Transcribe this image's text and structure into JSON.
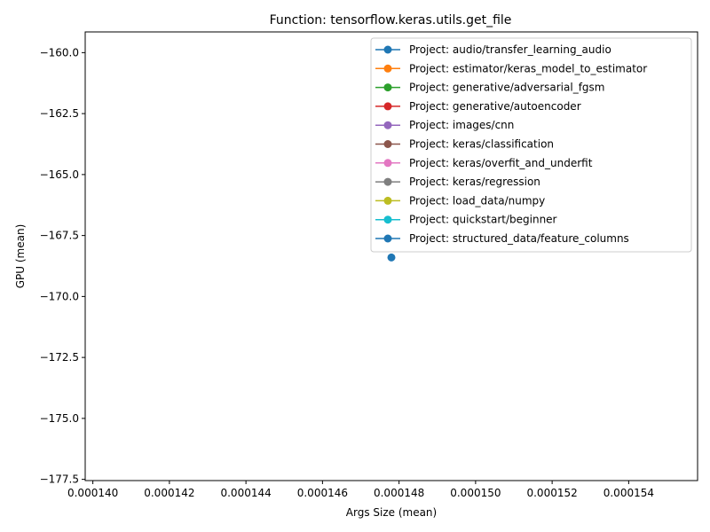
{
  "chart_data": {
    "type": "line",
    "title": "Function: tensorflow.keras.utils.get_file",
    "xlabel": "Args Size (mean)",
    "ylabel": "GPU (mean)",
    "xlim": [
      0.0001398,
      0.0001558
    ],
    "ylim": [
      -177.55,
      -159.15
    ],
    "x_ticks": [
      0.00014,
      0.000142,
      0.000144,
      0.000146,
      0.000148,
      0.00015,
      0.000152,
      0.000154
    ],
    "x_tick_labels": [
      "0.000140",
      "0.000142",
      "0.000144",
      "0.000146",
      "0.000148",
      "0.000150",
      "0.000152",
      "0.000154"
    ],
    "y_ticks": [
      -160.0,
      -162.5,
      -165.0,
      -167.5,
      -170.0,
      -172.5,
      -175.0,
      -177.5
    ],
    "y_tick_labels": [
      "−160.0",
      "−162.5",
      "−165.0",
      "−167.5",
      "−170.0",
      "−172.5",
      "−175.0",
      "−177.5"
    ],
    "legend_position": "top-right",
    "grid": false,
    "series": [
      {
        "name": "Project: audio/transfer_learning_audio",
        "color": "#1f77b4",
        "points": []
      },
      {
        "name": "Project: estimator/keras_model_to_estimator",
        "color": "#ff7f0e",
        "points": []
      },
      {
        "name": "Project: generative/adversarial_fgsm",
        "color": "#2ca02c",
        "points": []
      },
      {
        "name": "Project: generative/autoencoder",
        "color": "#d62728",
        "points": []
      },
      {
        "name": "Project: images/cnn",
        "color": "#9467bd",
        "points": []
      },
      {
        "name": "Project: keras/classification",
        "color": "#8c564b",
        "points": []
      },
      {
        "name": "Project: keras/overfit_and_underfit",
        "color": "#e377c2",
        "points": []
      },
      {
        "name": "Project: keras/regression",
        "color": "#7f7f7f",
        "points": []
      },
      {
        "name": "Project: load_data/numpy",
        "color": "#bcbd22",
        "points": []
      },
      {
        "name": "Project: quickstart/beginner",
        "color": "#17becf",
        "points": []
      },
      {
        "name": "Project: structured_data/feature_columns",
        "color": "#1f77b4",
        "points": [
          [
            0.0001478,
            -168.4
          ]
        ]
      }
    ]
  }
}
